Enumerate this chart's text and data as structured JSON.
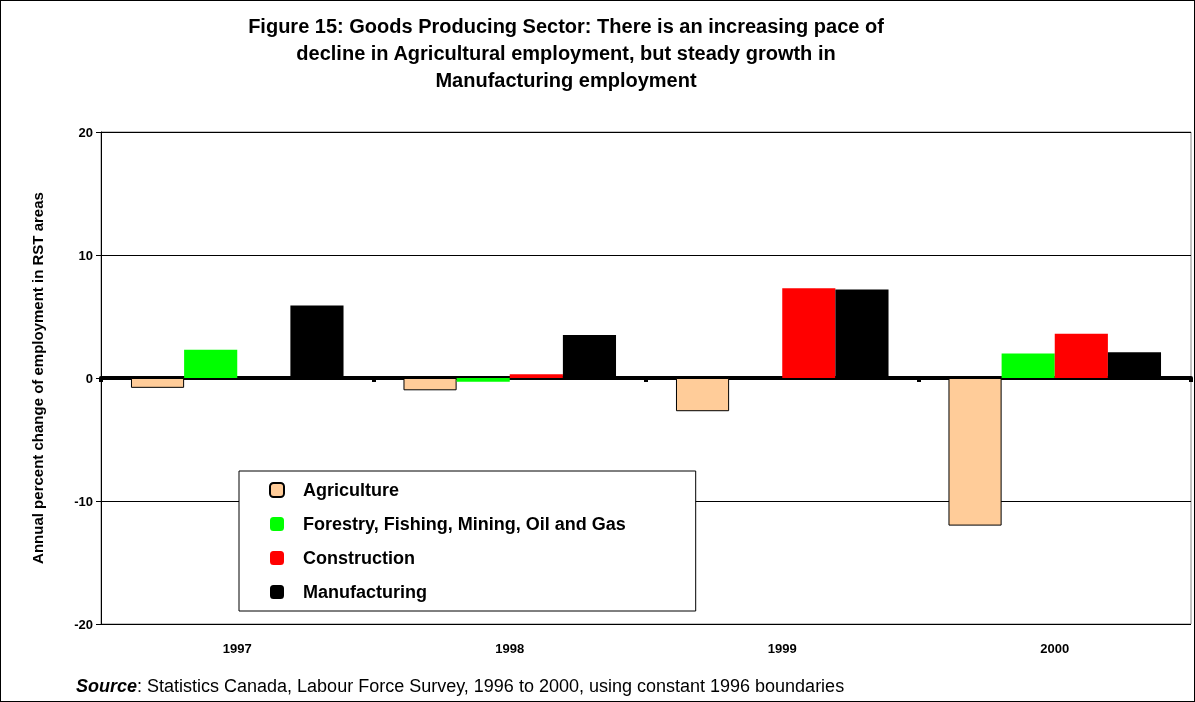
{
  "chart_data": {
    "type": "bar",
    "title": "Figure 15: Goods Producing Sector: There is an increasing pace of\ndecline in Agricultural employment, but steady growth in\nManufacturing employment",
    "ylabel": "Annual percent change of employment in RST areas",
    "categories": [
      "1997",
      "1998",
      "1999",
      "2000"
    ],
    "series": [
      {
        "name": "Agriculture",
        "color": "#ffcc99",
        "values": [
          -0.8,
          -1.0,
          -2.7,
          -12.0
        ]
      },
      {
        "name": "Forestry, Fishing, Mining, Oil and Gas",
        "color": "#00ff00",
        "values": [
          2.3,
          -0.3,
          0,
          2.0
        ]
      },
      {
        "name": "Construction",
        "color": "#ff0000",
        "values": [
          0,
          0.3,
          7.3,
          3.6
        ]
      },
      {
        "name": "Manufacturing",
        "color": "#000000",
        "values": [
          5.9,
          3.5,
          7.2,
          2.1
        ]
      }
    ],
    "ylim": [
      -20,
      20
    ],
    "yticks": [
      -20,
      -10,
      0,
      10,
      20
    ],
    "grid": "y",
    "legend": "bottom left",
    "annotations": [
      "Source: Statistics Canada, Labour Force Survey, 1996 to 2000, using constant 1996 boundaries"
    ]
  }
}
